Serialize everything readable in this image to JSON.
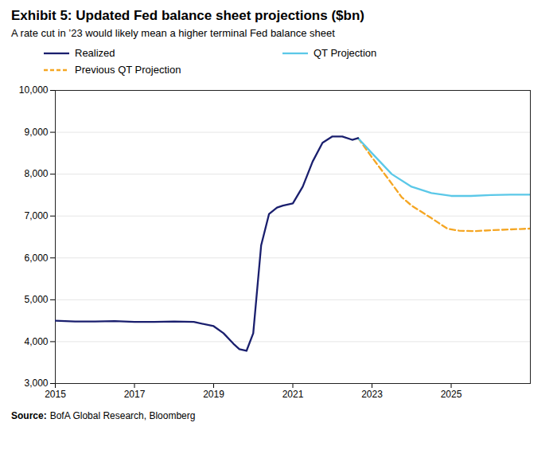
{
  "chart_data": {
    "type": "line",
    "title": "Exhibit 5: Updated Fed balance sheet projections ($bn)",
    "subtitle": "A rate cut in ’23 would likely mean a higher terminal Fed balance sheet",
    "source_label": "Source:",
    "source": "BofA Global Research, Bloomberg",
    "series": [
      {
        "name": "Realized",
        "color": "#1a1f6e",
        "line_style": "solid",
        "x": [
          2015.0,
          2015.5,
          2016.0,
          2016.5,
          2017.0,
          2017.5,
          2018.0,
          2018.5,
          2019.0,
          2019.25,
          2019.5,
          2019.65,
          2019.83,
          2020.0,
          2020.2,
          2020.4,
          2020.6,
          2020.75,
          2021.0,
          2021.25,
          2021.5,
          2021.75,
          2022.0,
          2022.25,
          2022.5,
          2022.65
        ],
        "values": [
          4500,
          4480,
          4480,
          4490,
          4470,
          4470,
          4480,
          4470,
          4370,
          4200,
          3950,
          3820,
          3780,
          4200,
          6300,
          7050,
          7200,
          7250,
          7300,
          7700,
          8300,
          8750,
          8900,
          8900,
          8820,
          8860
        ]
      },
      {
        "name": "QT Projection",
        "color": "#5bc8e8",
        "line_style": "solid",
        "x": [
          2022.65,
          2023.0,
          2023.5,
          2024.0,
          2024.5,
          2025.0,
          2025.5,
          2026.0,
          2026.5,
          2027.0
        ],
        "values": [
          8860,
          8500,
          8000,
          7700,
          7550,
          7480,
          7480,
          7500,
          7510,
          7510
        ]
      },
      {
        "name": "Previous QT Projection",
        "color": "#f5a623",
        "line_style": "dashed",
        "x": [
          2022.65,
          2023.0,
          2023.4,
          2023.75,
          2024.0,
          2024.5,
          2024.9,
          2025.2,
          2025.6,
          2026.0,
          2026.5,
          2027.0
        ],
        "values": [
          8860,
          8400,
          7900,
          7450,
          7250,
          6950,
          6700,
          6650,
          6640,
          6660,
          6680,
          6700
        ]
      }
    ],
    "xlim": [
      2015,
      2027
    ],
    "xticks": [
      2015,
      2017,
      2019,
      2021,
      2023,
      2025
    ],
    "ylim": [
      3000,
      10000
    ],
    "yticks": [
      {
        "value": 3000,
        "label": "3,000"
      },
      {
        "value": 4000,
        "label": "4,000"
      },
      {
        "value": 5000,
        "label": "5,000"
      },
      {
        "value": 6000,
        "label": "6,000"
      },
      {
        "value": 7000,
        "label": "7,000"
      },
      {
        "value": 8000,
        "label": "8,000"
      },
      {
        "value": 9000,
        "label": "9,000"
      },
      {
        "value": 10000,
        "label": "10,000"
      }
    ],
    "grid": "y",
    "legend": "top"
  }
}
